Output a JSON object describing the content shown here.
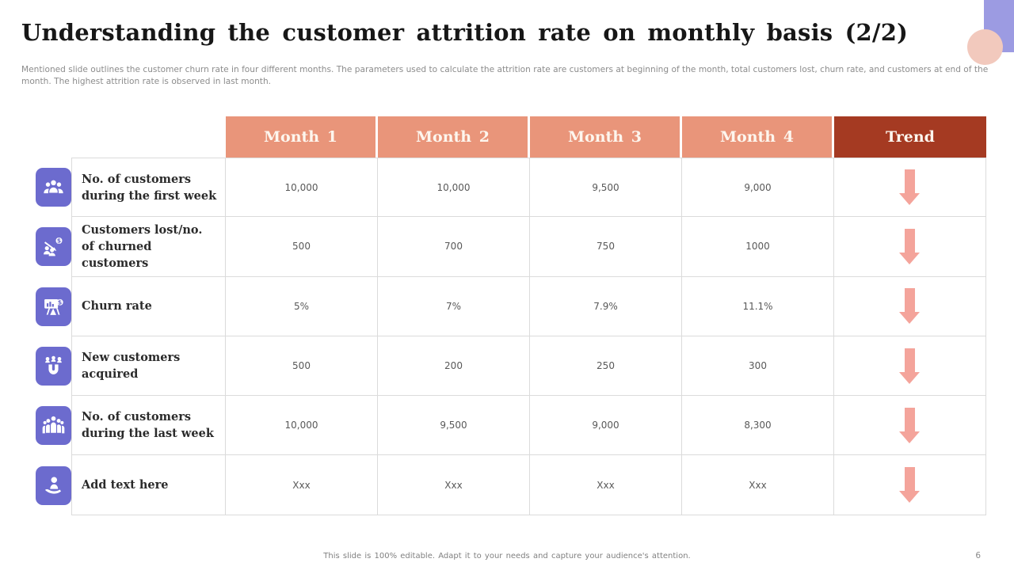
{
  "slide": {
    "title": "Understanding the customer attrition rate on monthly basis (2/2)",
    "subtitle": "Mentioned slide outlines the customer churn rate in four different months. The parameters used to calculate the attrition rate are customers at beginning of the month, total customers lost, churn rate, and customers at end of the month. The highest attrition rate is observed in last month.",
    "footer": "This slide is 100% editable.  Adapt it to your needs and capture your audience's attention.",
    "page_number": "6"
  },
  "colors": {
    "month_header_bg": "#e9957a",
    "trend_header_bg": "#a53a22",
    "header_text": "#fdf6ee",
    "trend_arrow": "#f4a49b",
    "icon_bg": "#6c6bce",
    "decor_square": "#9c9be2",
    "decor_circle": "#f2c9bd",
    "grid_line": "#dbdbdb",
    "value_text": "#595959",
    "label_text": "#2b2b2b",
    "muted_text": "#8c8c8c"
  },
  "table": {
    "columns": [
      "Month 1",
      "Month 2",
      "Month 3",
      "Month 4",
      "Trend"
    ],
    "rows": [
      {
        "icon": "customers-group-icon",
        "label": "No. of  customers during the first week",
        "values": [
          "10,000",
          "10,000",
          "9,500",
          "9,000"
        ],
        "trend": "down"
      },
      {
        "icon": "customer-loss-icon",
        "label": "Customers lost/no. of churned customers",
        "values": [
          "500",
          "700",
          "750",
          "1000"
        ],
        "trend": "down"
      },
      {
        "icon": "churn-rate-chart-icon",
        "label": "Churn rate",
        "values": [
          "5%",
          "7%",
          "7.9%",
          "11.1%"
        ],
        "trend": "down"
      },
      {
        "icon": "customer-magnet-icon",
        "label": "New customers acquired",
        "values": [
          "500",
          "200",
          "250",
          "300"
        ],
        "trend": "down"
      },
      {
        "icon": "customers-crowd-icon",
        "label": "No. of  customers during the last week",
        "values": [
          "10,000",
          "9,500",
          "9,000",
          "8,300"
        ],
        "trend": "down"
      },
      {
        "icon": "hand-person-icon",
        "label": "Add text here",
        "values": [
          "Xxx",
          "Xxx",
          "Xxx",
          "Xxx"
        ],
        "trend": "down"
      }
    ]
  }
}
